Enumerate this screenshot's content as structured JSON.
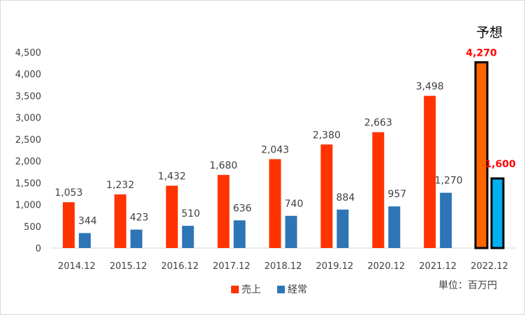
{
  "chart_data": {
    "type": "bar",
    "categories": [
      "2014.12",
      "2015.12",
      "2016.12",
      "2017.12",
      "2018.12",
      "2019.12",
      "2020.12",
      "2021.12",
      "2022.12"
    ],
    "series": [
      {
        "name": "売上",
        "color": "#FF3300",
        "values": [
          1053,
          1232,
          1432,
          1680,
          2043,
          2380,
          2663,
          3498,
          4270
        ],
        "labels": [
          "1,053",
          "1,232",
          "1,432",
          "1,680",
          "2,043",
          "2,380",
          "2,663",
          "3,498",
          "4,270"
        ]
      },
      {
        "name": "経常",
        "color": "#2E75B6",
        "values": [
          344,
          423,
          510,
          636,
          740,
          884,
          957,
          1270,
          1600
        ],
        "labels": [
          "344",
          "423",
          "510",
          "636",
          "740",
          "884",
          "957",
          "1,270",
          "1,600"
        ]
      }
    ],
    "forecast": {
      "index": 8,
      "label": "予想",
      "label_color": "#FF0000",
      "colors": {
        "売上": "#FF6600",
        "経常": "#00B0F0"
      }
    },
    "y_ticks": [
      "0",
      "500",
      "1,000",
      "1,500",
      "2,000",
      "2,500",
      "3,000",
      "3,500",
      "4,000",
      "4,500"
    ],
    "ylim": [
      0,
      4500
    ],
    "grid": false,
    "legend_position": "bottom",
    "unit_note": "単位：百万円",
    "axis_color": "#d9d9d9",
    "text_color": "#404040"
  }
}
